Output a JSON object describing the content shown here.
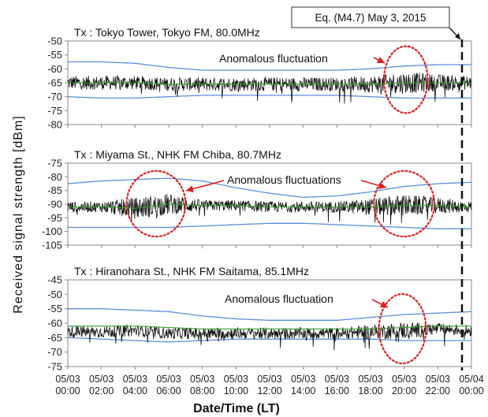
{
  "figure": {
    "ylabel": "Received signal strength [dBm]",
    "xlabel": "Date/Time (LT)",
    "earthquake_label": "Eq. (M4.7) May 3, 2015",
    "x_ticks": [
      [
        "05/03",
        "00:00"
      ],
      [
        "05/03",
        "02:00"
      ],
      [
        "05/03",
        "04:00"
      ],
      [
        "05/03",
        "06:00"
      ],
      [
        "05/03",
        "08:00"
      ],
      [
        "05/03",
        "10:00"
      ],
      [
        "05/03",
        "12:00"
      ],
      [
        "05/03",
        "14:00"
      ],
      [
        "05/03",
        "16:00"
      ],
      [
        "05/03",
        "18:00"
      ],
      [
        "05/03",
        "20:00"
      ],
      [
        "05/03",
        "22:00"
      ],
      [
        "05/04",
        "00:00"
      ]
    ]
  },
  "colors": {
    "signal": "#111111",
    "mean": "#33a02c",
    "bounds": "#5b8fd6",
    "annotation": "#e02020",
    "earthquake_line": "#111111"
  },
  "chart_data": [
    {
      "type": "line",
      "title": "Tx : Tokyo Tower, Tokyo FM, 80.0MHz",
      "annotation": "Anomalous fluctuation",
      "ylim": [
        -80,
        -50
      ],
      "yticks": [
        -50,
        -55,
        -60,
        -65,
        -70,
        -75,
        -80
      ],
      "x_hours": [
        0,
        2,
        4,
        6,
        8,
        10,
        12,
        14,
        16,
        18,
        20,
        22,
        24
      ],
      "signal_mean_dBm": [
        -65,
        -65,
        -65,
        -65.5,
        -65.5,
        -65.5,
        -65.5,
        -65.5,
        -65.5,
        -65.5,
        -65,
        -65,
        -65
      ],
      "signal_spread_dBm": [
        2.5,
        2.5,
        2.5,
        2.5,
        2.5,
        2.5,
        2.5,
        2.5,
        2.5,
        3,
        4,
        3,
        2.5
      ],
      "upper_bound_dBm": [
        -57.5,
        -57.5,
        -58,
        -59.5,
        -60.5,
        -60.5,
        -60.5,
        -60.5,
        -60.5,
        -60,
        -59,
        -58.5,
        -58.5
      ],
      "lower_bound_dBm": [
        -70,
        -70.5,
        -70.5,
        -70,
        -69.5,
        -69.5,
        -69.5,
        -69.5,
        -69.5,
        -70,
        -70.5,
        -70.5,
        -70.5
      ],
      "anomaly_window_hours": [
        18.8,
        21.4
      ],
      "anomaly_center_dBm": -65
    },
    {
      "type": "line",
      "title": "Tx : Miyama St., NHK FM Chiba, 80.7MHz",
      "annotation": "Anomalous fluctuations",
      "ylim": [
        -105,
        -75
      ],
      "yticks": [
        -75,
        -80,
        -85,
        -90,
        -95,
        -100,
        -105
      ],
      "x_hours": [
        0,
        2,
        4,
        6,
        8,
        10,
        12,
        14,
        16,
        18,
        20,
        22,
        24
      ],
      "signal_mean_dBm": [
        -91,
        -91,
        -91.5,
        -90,
        -90.5,
        -90.5,
        -91,
        -91,
        -91,
        -91,
        -90.5,
        -90.5,
        -91
      ],
      "signal_spread_dBm": [
        2,
        2,
        4,
        4,
        2,
        2,
        2,
        2,
        2,
        3,
        4,
        3,
        2
      ],
      "upper_bound_dBm": [
        -82.5,
        -81.5,
        -81,
        -80.5,
        -81.5,
        -84,
        -86,
        -87.5,
        -87,
        -85.5,
        -83.5,
        -82.5,
        -82
      ],
      "lower_bound_dBm": [
        -98.5,
        -98.5,
        -98.5,
        -98.5,
        -98,
        -97.5,
        -97,
        -97,
        -97.5,
        -98,
        -98.5,
        -99,
        -99
      ],
      "anomaly_window_hours": [
        [
          3.5,
          7.0
        ],
        [
          18.2,
          21.8
        ]
      ],
      "anomaly_center_dBm": -91
    },
    {
      "type": "line",
      "title": "Tx : Hiranohara St., NHK FM Saitama, 85.1MHz",
      "annotation": "Anomalous fluctuation",
      "ylim": [
        -75,
        -45
      ],
      "yticks": [
        -45,
        -50,
        -55,
        -60,
        -65,
        -70,
        -75
      ],
      "x_hours": [
        0,
        2,
        4,
        6,
        8,
        10,
        12,
        14,
        16,
        18,
        20,
        22,
        24
      ],
      "signal_mean_dBm": [
        -63,
        -63,
        -62.5,
        -63.5,
        -63.5,
        -63.5,
        -63.5,
        -63.5,
        -63.5,
        -63,
        -62.5,
        -62,
        -62.5
      ],
      "signal_spread_dBm": [
        2,
        2,
        2,
        2,
        2,
        2,
        2,
        2,
        2,
        2.5,
        3,
        2,
        2
      ],
      "upper_bound_dBm": [
        -55,
        -55,
        -55.5,
        -56,
        -57.5,
        -58.5,
        -59,
        -59,
        -59,
        -58,
        -57,
        -56.5,
        -56
      ],
      "lower_bound_dBm": [
        -65,
        -65.5,
        -66,
        -66.5,
        -66,
        -65.5,
        -65.5,
        -65.5,
        -65.5,
        -65.5,
        -66,
        -66,
        -66
      ],
      "mean_level_dBm": [
        -61,
        -61,
        -61,
        -61.5,
        -62,
        -62,
        -62,
        -62,
        -62,
        -62,
        -61.5,
        -61,
        -61
      ],
      "anomaly_window_hours": [
        18.5,
        21.3
      ],
      "anomaly_center_dBm": -63
    }
  ]
}
